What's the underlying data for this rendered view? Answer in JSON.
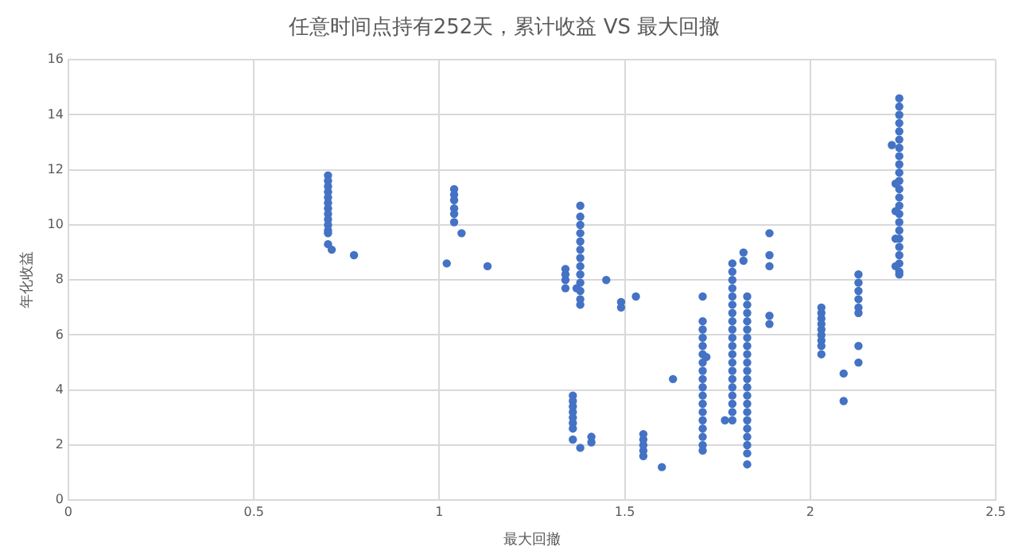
{
  "chart_data": {
    "type": "scatter",
    "title": "任意时间点持有252天，累计收益 VS 最大回撤",
    "xlabel": "最大回撤",
    "ylabel": "年化收益",
    "color": "#4472c4",
    "marker": "circle",
    "grid": true,
    "legend": false,
    "xlim": [
      0,
      2.5
    ],
    "xticks": [
      0,
      0.5,
      1,
      1.5,
      2,
      2.5
    ],
    "ylim": [
      0,
      16
    ],
    "yticks": [
      0,
      2,
      4,
      6,
      8,
      10,
      12,
      14,
      16
    ],
    "x": [
      0.7,
      0.7,
      0.7,
      0.7,
      0.7,
      0.7,
      0.7,
      0.7,
      0.7,
      0.7,
      0.7,
      0.7,
      0.7,
      0.71,
      0.77,
      1.04,
      1.04,
      1.04,
      1.04,
      1.04,
      1.04,
      1.06,
      1.02,
      1.13,
      1.38,
      1.38,
      1.38,
      1.38,
      1.38,
      1.38,
      1.38,
      1.38,
      1.38,
      1.38,
      1.38,
      1.38,
      1.38,
      1.34,
      1.34,
      1.34,
      1.34,
      1.37,
      1.45,
      1.49,
      1.49,
      1.53,
      1.36,
      1.36,
      1.36,
      1.36,
      1.36,
      1.36,
      1.36,
      1.36,
      1.38,
      1.41,
      1.41,
      1.55,
      1.55,
      1.55,
      1.55,
      1.55,
      1.6,
      1.63,
      1.71,
      1.71,
      1.71,
      1.71,
      1.71,
      1.71,
      1.71,
      1.71,
      1.71,
      1.71,
      1.71,
      1.71,
      1.71,
      1.71,
      1.71,
      1.71,
      1.71,
      1.71,
      1.72,
      1.79,
      1.79,
      1.79,
      1.79,
      1.79,
      1.79,
      1.79,
      1.79,
      1.79,
      1.79,
      1.79,
      1.79,
      1.79,
      1.79,
      1.79,
      1.79,
      1.79,
      1.79,
      1.79,
      1.79,
      1.77,
      1.82,
      1.82,
      1.83,
      1.83,
      1.83,
      1.83,
      1.83,
      1.83,
      1.83,
      1.83,
      1.83,
      1.83,
      1.83,
      1.83,
      1.83,
      1.83,
      1.83,
      1.83,
      1.83,
      1.83,
      1.83,
      1.83,
      1.83,
      1.89,
      1.89,
      1.89,
      1.89,
      1.89,
      2.03,
      2.03,
      2.03,
      2.03,
      2.03,
      2.03,
      2.03,
      2.03,
      2.03,
      2.09,
      2.09,
      2.13,
      2.13,
      2.13,
      2.13,
      2.13,
      2.13,
      2.13,
      2.13,
      2.24,
      2.24,
      2.24,
      2.24,
      2.24,
      2.24,
      2.24,
      2.24,
      2.24,
      2.24,
      2.24,
      2.24,
      2.24,
      2.24,
      2.24,
      2.24,
      2.24,
      2.24,
      2.24,
      2.24,
      2.24,
      2.24,
      2.24,
      2.23,
      2.23,
      2.23,
      2.23,
      2.22
    ],
    "values": [
      11.8,
      11.6,
      11.4,
      11.2,
      11.0,
      10.8,
      10.6,
      10.4,
      10.2,
      10.0,
      9.8,
      9.7,
      9.3,
      9.1,
      8.9,
      11.3,
      11.1,
      10.9,
      10.6,
      10.4,
      10.1,
      9.7,
      8.6,
      8.5,
      10.7,
      10.3,
      10.0,
      9.7,
      9.4,
      9.1,
      8.8,
      8.5,
      8.2,
      7.9,
      7.6,
      7.3,
      7.1,
      8.4,
      8.2,
      8.0,
      7.7,
      7.7,
      8.0,
      7.2,
      7.0,
      7.4,
      3.8,
      3.6,
      3.4,
      3.2,
      3.0,
      2.8,
      2.6,
      2.2,
      1.9,
      2.3,
      2.1,
      2.4,
      2.2,
      2.0,
      1.8,
      1.6,
      1.2,
      4.4,
      6.5,
      6.2,
      5.9,
      5.6,
      5.3,
      5.0,
      4.7,
      4.4,
      4.1,
      3.8,
      3.5,
      3.2,
      2.9,
      2.6,
      2.3,
      2.0,
      1.8,
      7.4,
      5.2,
      8.6,
      8.3,
      8.0,
      7.7,
      7.4,
      7.1,
      6.8,
      6.5,
      6.2,
      5.9,
      5.6,
      5.3,
      5.0,
      4.7,
      4.4,
      4.1,
      3.8,
      3.5,
      3.2,
      2.9,
      2.9,
      9.0,
      8.7,
      7.4,
      7.1,
      6.8,
      6.5,
      6.2,
      5.9,
      5.6,
      5.3,
      5.0,
      4.7,
      4.4,
      4.1,
      3.8,
      3.5,
      3.2,
      2.9,
      2.6,
      2.3,
      2.0,
      1.7,
      1.3,
      9.7,
      8.9,
      8.5,
      6.7,
      6.4,
      7.0,
      6.8,
      6.6,
      6.4,
      6.2,
      6.0,
      5.8,
      5.6,
      5.3,
      4.6,
      3.6,
      8.2,
      7.9,
      7.6,
      7.3,
      7.0,
      6.8,
      5.6,
      5.0,
      14.6,
      14.3,
      14.0,
      13.7,
      13.4,
      13.1,
      12.8,
      12.5,
      12.2,
      11.9,
      11.6,
      11.3,
      11.0,
      10.7,
      10.4,
      10.1,
      9.8,
      9.5,
      9.2,
      8.9,
      8.6,
      8.3,
      8.2,
      11.5,
      10.5,
      9.5,
      8.5,
      12.9
    ]
  }
}
